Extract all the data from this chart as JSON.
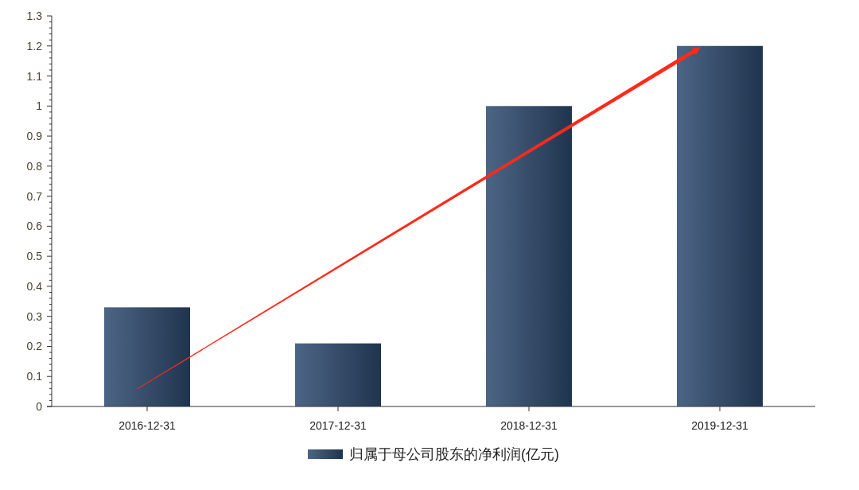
{
  "chart_data": {
    "type": "bar",
    "categories": [
      "2016-12-31",
      "2017-12-31",
      "2018-12-31",
      "2019-12-31"
    ],
    "series": [
      {
        "name": "归属于母公司股东的净利润(亿元)",
        "color": "#2d4a6f",
        "values": [
          0.33,
          0.21,
          1.0,
          1.2
        ]
      }
    ],
    "ylim": [
      0,
      1.3
    ],
    "yticks": [
      0,
      0.1,
      0.2,
      0.3,
      0.4,
      0.5,
      0.6,
      0.7,
      0.8,
      0.9,
      {
        "value": 1,
        "label": "1"
      },
      1.1,
      1.2,
      1.3
    ],
    "grid": false,
    "legend": "bottom"
  }
}
